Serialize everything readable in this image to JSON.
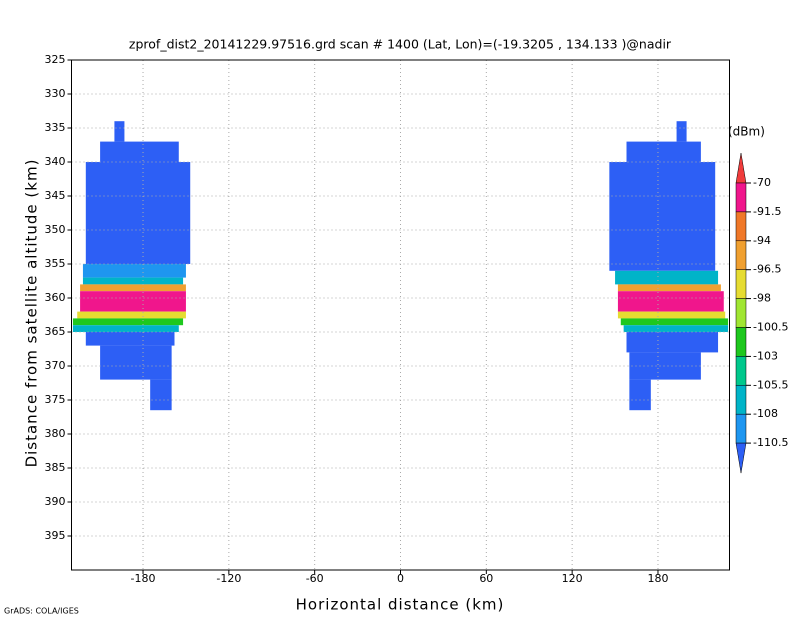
{
  "chart_data": {
    "type": "field",
    "title": "zprof_dist2_20141229.97516.grd  scan # 1400  (Lat, Lon)=(-19.3205 , 134.133 )@nadir",
    "x_label": "Horizontal distance (km)",
    "y_label": "Distance from satellite altitude (km)",
    "footer": "GrADS: COLA/IGES",
    "xlim": [
      -230,
      230
    ],
    "xticks": [
      -180,
      -120,
      -60,
      0,
      60,
      120,
      180
    ],
    "ylim": [
      325,
      400
    ],
    "yticks": [
      325,
      330,
      335,
      340,
      345,
      350,
      355,
      360,
      365,
      370,
      375,
      380,
      385,
      390,
      395
    ],
    "y_reversed": true,
    "grid": true,
    "colorbar": {
      "unit": "(dBm)",
      "levels": [
        -70,
        -91.5,
        -94,
        -96.5,
        -98,
        -100.5,
        -103,
        -105.5,
        -108,
        -110.5
      ],
      "colors": [
        "#f03c3c",
        "#f0168c",
        "#f07828",
        "#f0a030",
        "#e6dc32",
        "#a0e632",
        "#1ec81e",
        "#00c88c",
        "#00b4c8",
        "#1e96f0",
        "#2d5ff5"
      ]
    },
    "regions": [
      {
        "x": [
          -200,
          -193
        ],
        "y": [
          334,
          337
        ],
        "value": -115
      },
      {
        "x": [
          -210,
          -155
        ],
        "y": [
          337,
          340
        ],
        "value": -115
      },
      {
        "x": [
          -220,
          -147
        ],
        "y": [
          340,
          355
        ],
        "value": -115
      },
      {
        "x": [
          -222,
          -150
        ],
        "y": [
          355,
          357
        ],
        "value": -109
      },
      {
        "x": [
          -222,
          -152
        ],
        "y": [
          357,
          358
        ],
        "value": -106.5
      },
      {
        "x": [
          -224,
          -150
        ],
        "y": [
          358,
          359
        ],
        "value": -95
      },
      {
        "x": [
          -224,
          -150
        ],
        "y": [
          359,
          362
        ],
        "value": -80
      },
      {
        "x": [
          -226,
          -150
        ],
        "y": [
          362,
          363
        ],
        "value": -97
      },
      {
        "x": [
          -229,
          -152
        ],
        "y": [
          363,
          364
        ],
        "value": -102
      },
      {
        "x": [
          -229,
          -155
        ],
        "y": [
          364,
          365
        ],
        "value": -106.5
      },
      {
        "x": [
          -220,
          -158
        ],
        "y": [
          365,
          367
        ],
        "value": -115
      },
      {
        "x": [
          -210,
          -160
        ],
        "y": [
          367,
          372
        ],
        "value": -115
      },
      {
        "x": [
          -175,
          -160
        ],
        "y": [
          372,
          376.5
        ],
        "value": -115
      },
      {
        "x": [
          193,
          200
        ],
        "y": [
          334,
          337
        ],
        "value": -115
      },
      {
        "x": [
          158,
          210
        ],
        "y": [
          337,
          340
        ],
        "value": -115
      },
      {
        "x": [
          146,
          220
        ],
        "y": [
          340,
          356
        ],
        "value": -115
      },
      {
        "x": [
          150,
          222
        ],
        "y": [
          356,
          358
        ],
        "value": -106.5
      },
      {
        "x": [
          152,
          224
        ],
        "y": [
          358,
          359
        ],
        "value": -95
      },
      {
        "x": [
          152,
          226
        ],
        "y": [
          359,
          362
        ],
        "value": -80
      },
      {
        "x": [
          152,
          227
        ],
        "y": [
          362,
          363
        ],
        "value": -97
      },
      {
        "x": [
          154,
          229
        ],
        "y": [
          363,
          364
        ],
        "value": -102
      },
      {
        "x": [
          156,
          229
        ],
        "y": [
          364,
          365
        ],
        "value": -106.5
      },
      {
        "x": [
          158,
          222
        ],
        "y": [
          365,
          368
        ],
        "value": -115
      },
      {
        "x": [
          160,
          210
        ],
        "y": [
          368,
          372
        ],
        "value": -115
      },
      {
        "x": [
          160,
          175
        ],
        "y": [
          372,
          376.5
        ],
        "value": -115
      }
    ]
  }
}
